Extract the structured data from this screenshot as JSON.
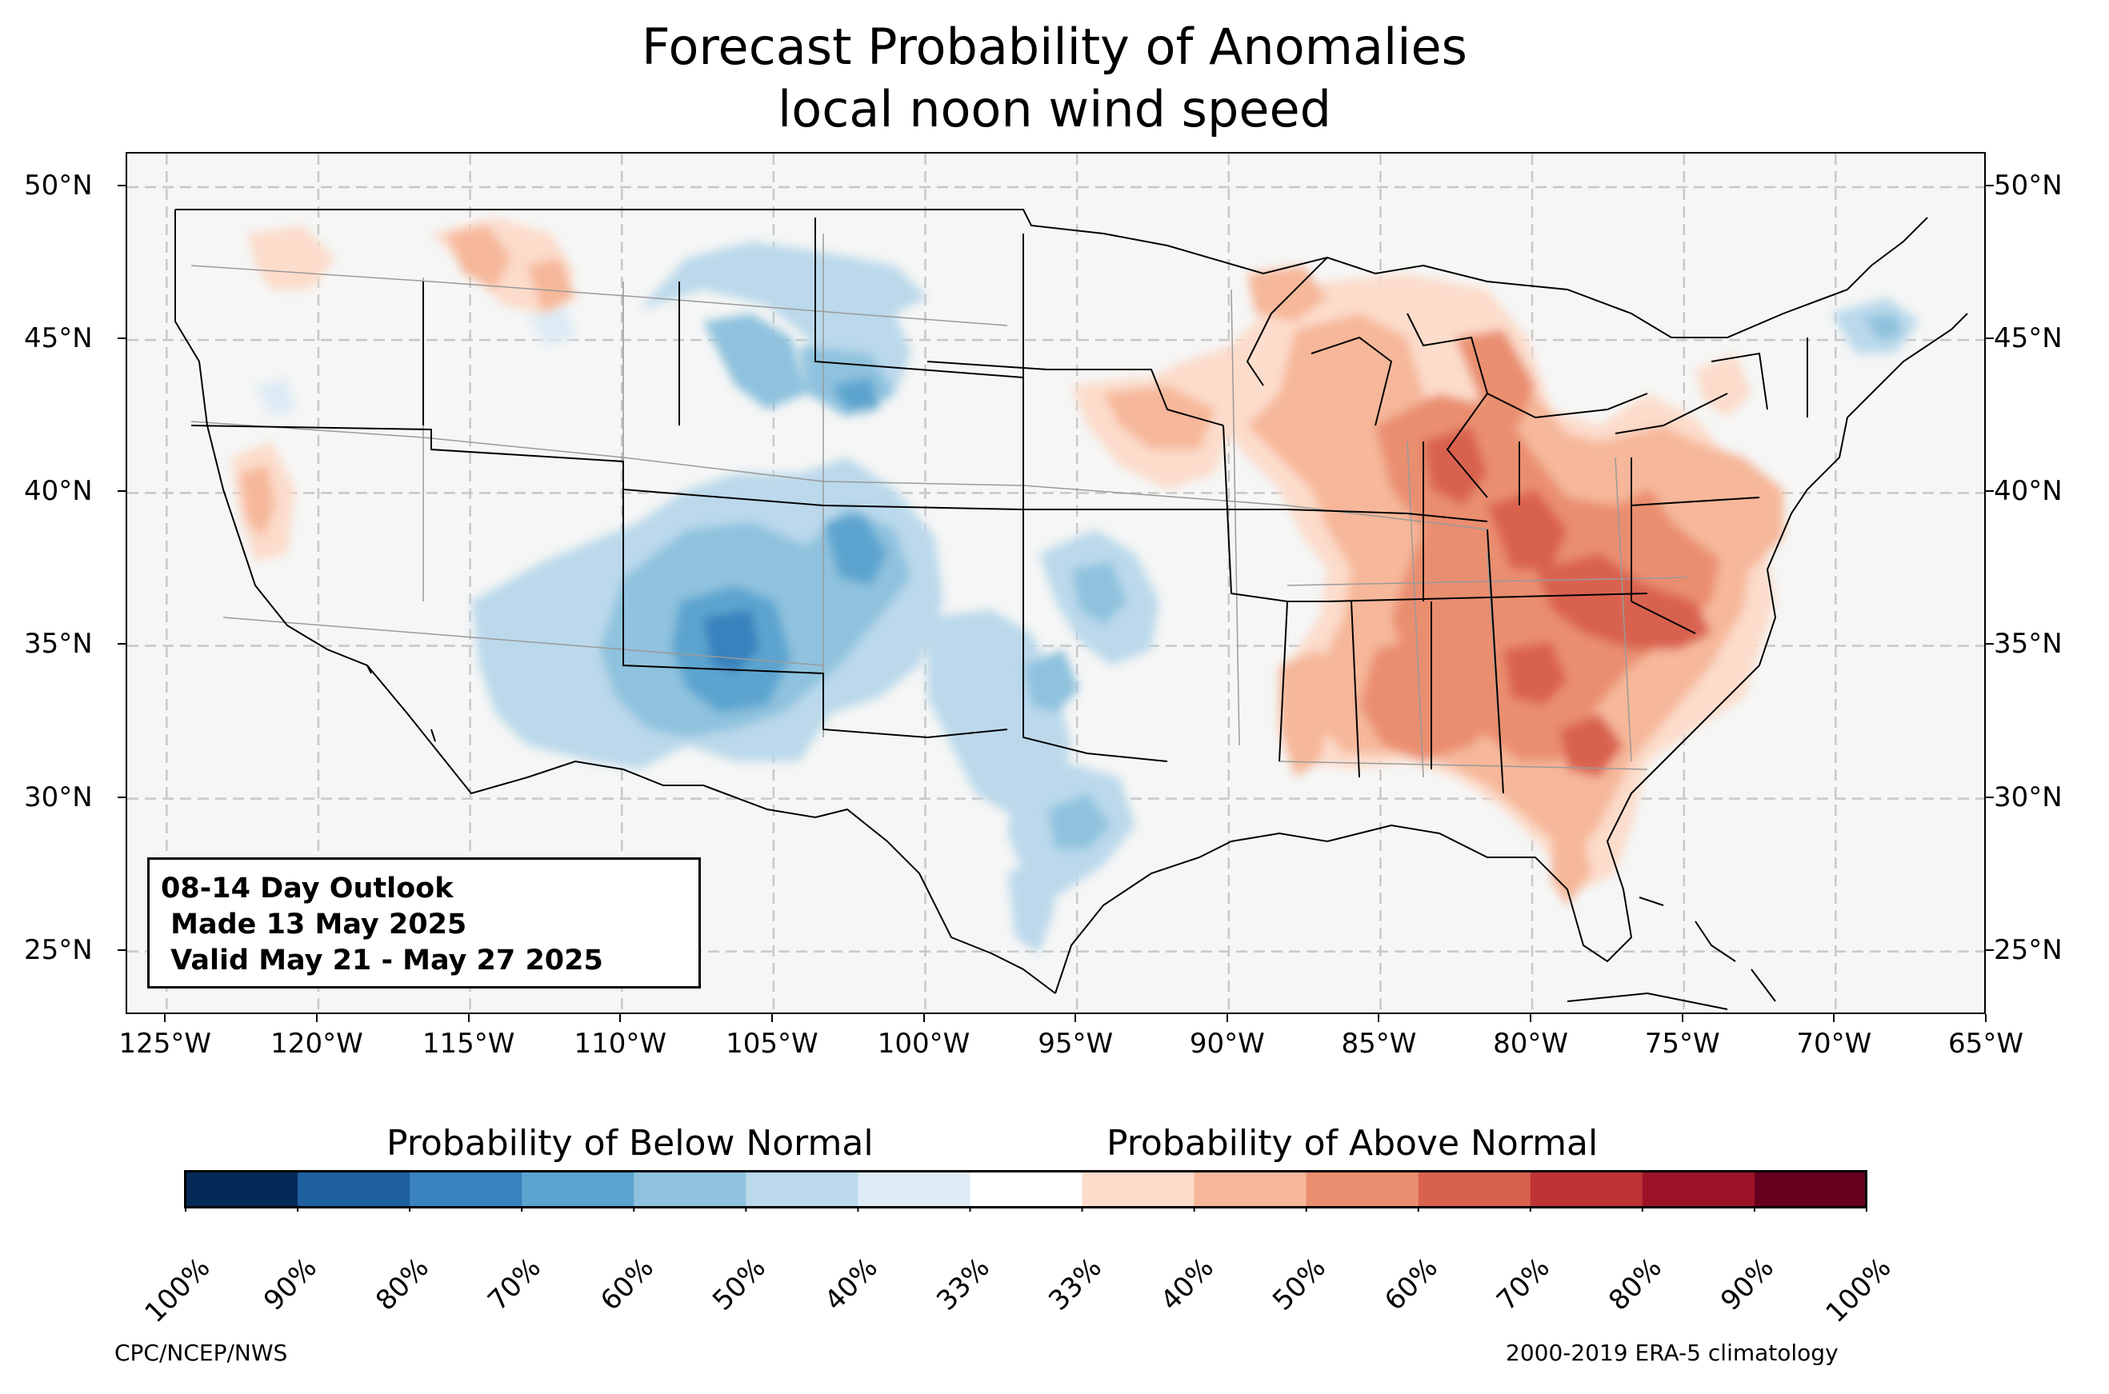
{
  "title": {
    "line1": "Forecast Probability of Anomalies",
    "line2": "local noon wind speed"
  },
  "map": {
    "latitude_labels": [
      "50°N",
      "45°N",
      "40°N",
      "35°N",
      "30°N",
      "25°N"
    ],
    "longitude_labels": [
      "125°W",
      "120°W",
      "115°W",
      "110°W",
      "105°W",
      "100°W",
      "95°W",
      "90°W",
      "85°W",
      "80°W",
      "75°W",
      "70°W",
      "65°W"
    ],
    "background_color": "#f5f6f5",
    "gridlines": "dashed gray",
    "below_normal_regions": [
      "Southwest (Arizona, New Mexico)",
      "Colorado / Utah",
      "Wyoming / Montana",
      "Kansas / Oklahoma / Texas",
      "Northern Maine"
    ],
    "above_normal_regions": [
      "Ohio Valley",
      "Southeast",
      "Mid-Atlantic",
      "Great Lakes",
      "Pacific Northwest",
      "Northern California"
    ]
  },
  "info_box": {
    "line1": "08-14 Day Outlook",
    "line2": " Made 13 May 2025",
    "line3": " Valid May 21 - May 27 2025"
  },
  "legend": {
    "below_title": "Probability of Below Normal",
    "above_title": "Probability of Above Normal",
    "tick_labels": [
      "100%",
      "90%",
      "80%",
      "70%",
      "60%",
      "50%",
      "40%",
      "33%",
      "33%",
      "40%",
      "50%",
      "60%",
      "70%",
      "80%",
      "90%",
      "100%"
    ],
    "colors": [
      "#062a57",
      "#1e5f9e",
      "#3882bd",
      "#5ca4cf",
      "#8fc2de",
      "#bbd9eb",
      "#deebf5",
      "#ffffff",
      "#fcdccb",
      "#f6b79a",
      "#ea8e70",
      "#d9624f",
      "#bf3336",
      "#9c1327",
      "#67001f"
    ]
  },
  "footer": {
    "left": "CPC/NCEP/NWS",
    "right": "2000-2019 ERA-5 climatology"
  }
}
